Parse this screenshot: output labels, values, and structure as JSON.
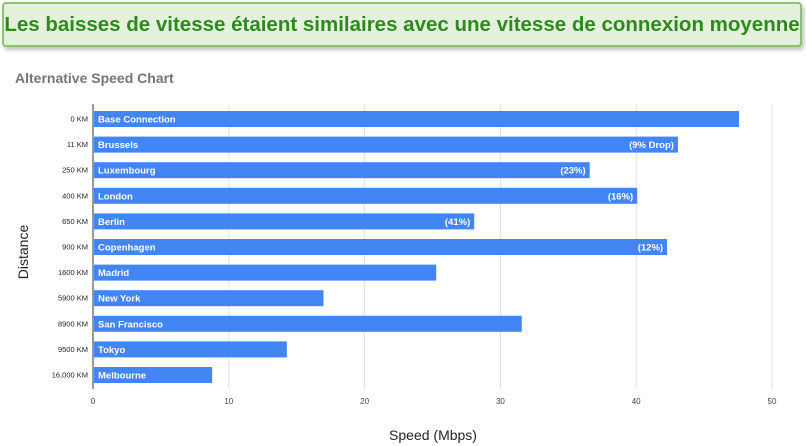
{
  "banner": {
    "text": "Les baisses de vitesse étaient similaires avec une vitesse de connexion moyenne"
  },
  "colors": {
    "bar": "#4285f4",
    "banner_bg": "#e4f1dc",
    "banner_border": "#8cc36e",
    "banner_text": "#2e8a1e"
  },
  "chart_data": {
    "type": "bar",
    "orientation": "horizontal",
    "title": "Alternative Speed Chart",
    "xlabel": "Speed (Mbps)",
    "ylabel": "Distance",
    "xlim": [
      0,
      50
    ],
    "xticks": [
      0,
      10,
      20,
      30,
      40,
      50
    ],
    "grid": true,
    "categories": [
      "0 KM",
      "11 KM",
      "250 KM",
      "400 KM",
      "650 KM",
      "900 KM",
      "1600 KM",
      "5900 KM",
      "8900 KM",
      "9500 KM",
      "16,000 KM"
    ],
    "bar_labels": [
      "Base Connection",
      "Brussels",
      "Luxembourg",
      "London",
      "Berlin",
      "Copenhagen",
      "Madrid",
      "New York",
      "San Francisco",
      "Tokyo",
      "Melbourne"
    ],
    "drop_labels": [
      "",
      "(9% Drop)",
      "(23%)",
      "(16%)",
      "(41%)",
      "(12%)",
      "",
      "",
      "",
      "",
      ""
    ],
    "values": [
      47.5,
      43.0,
      36.5,
      40.0,
      28.0,
      42.2,
      25.2,
      16.9,
      31.5,
      14.2,
      8.7
    ]
  }
}
